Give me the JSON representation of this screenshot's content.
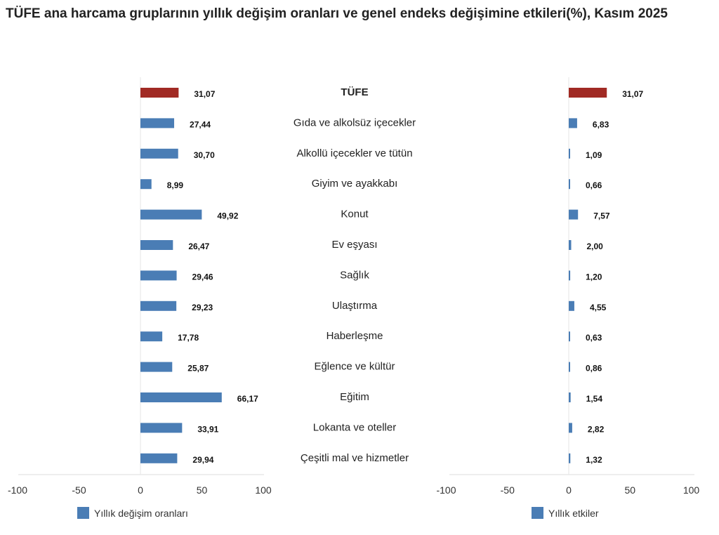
{
  "chart_data": [
    {
      "type": "bar",
      "orientation": "horizontal",
      "title": "TÜFE ana harcama gruplarının yıllık değişim oranları ve genel endeks değişimine etkileri(%), Kasım 2025",
      "categories": [
        "TÜFE",
        "Gıda ve alkolsüz içecekler",
        "Alkollü içecekler ve tütün",
        "Giyim ve ayakkabı",
        "Konut",
        "Ev eşyası",
        "Sağlık",
        "Ulaştırma",
        "Haberleşme",
        "Eğlence ve kültür",
        "Eğitim",
        "Lokanta ve oteller",
        "Çeşitli mal ve hizmetler"
      ],
      "series": [
        {
          "name": "Yıllık değişim oranları",
          "values": [
            31.07,
            27.44,
            30.7,
            8.99,
            49.92,
            26.47,
            29.46,
            29.23,
            17.78,
            25.87,
            66.17,
            33.91,
            29.94
          ],
          "labels": [
            "31,07",
            "27,44",
            "30,70",
            "8,99",
            "49,92",
            "26,47",
            "29,46",
            "29,23",
            "17,78",
            "25,87",
            "66,17",
            "33,91",
            "29,94"
          ]
        }
      ],
      "xlim": [
        -100,
        100
      ],
      "xticks": [
        "-100",
        "-50",
        "0",
        "50",
        "100"
      ],
      "legend": "bottom-left"
    },
    {
      "type": "bar",
      "orientation": "horizontal",
      "categories": [
        "TÜFE",
        "Gıda ve alkolsüz içecekler",
        "Alkollü içecekler ve tütün",
        "Giyim ve ayakkabı",
        "Konut",
        "Ev eşyası",
        "Sağlık",
        "Ulaştırma",
        "Haberleşme",
        "Eğlence ve kültür",
        "Eğitim",
        "Lokanta ve oteller",
        "Çeşitli mal ve hizmetler"
      ],
      "series": [
        {
          "name": "Yıllık etkiler",
          "values": [
            31.07,
            6.83,
            1.09,
            0.66,
            7.57,
            2.0,
            1.2,
            4.55,
            0.63,
            0.86,
            1.54,
            2.82,
            1.32
          ],
          "labels": [
            "31,07",
            "6,83",
            "1,09",
            "0,66",
            "7,57",
            "2,00",
            "1,20",
            "4,55",
            "0,63",
            "0,86",
            "1,54",
            "2,82",
            "1,32"
          ]
        }
      ],
      "xlim": [
        -100,
        100
      ],
      "xticks": [
        "-100",
        "-50",
        "0",
        "50",
        "100"
      ],
      "legend": "bottom-right"
    }
  ],
  "colors": {
    "highlight": "#a12a24",
    "bar": "#4a7db5"
  }
}
